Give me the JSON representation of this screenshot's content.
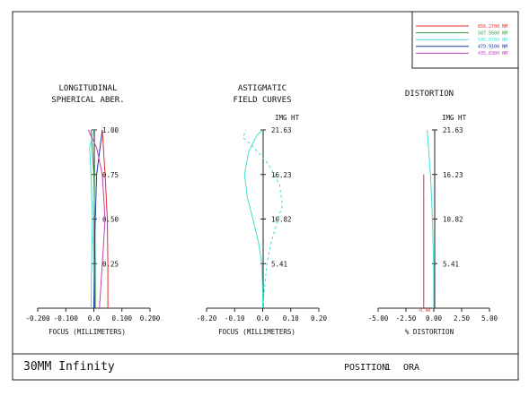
{
  "legend": {
    "items": [
      {
        "label": "656.2700 NM",
        "color": "#e03030"
      },
      {
        "label": "587.5600 NM",
        "color": "#2e9e3e"
      },
      {
        "label": "546.0700 NM",
        "color": "#40e0d0"
      },
      {
        "label": "479.9100 NM",
        "color": "#1a3aa0"
      },
      {
        "label": "435.8300 NM",
        "color": "#c040c0"
      }
    ]
  },
  "footer": {
    "lens_name": "30MM Infinity",
    "position_label": "POSITION",
    "position_value": "1",
    "position_suffix": "ORA"
  },
  "chart_data": [
    {
      "type": "line",
      "title": "LONGITUDINAL",
      "subtitle": "SPHERICAL ABER.",
      "xlabel": "FOCUS (MILLIMETERS)",
      "xlim": [
        -0.2,
        0.2
      ],
      "xticks": [
        "-0.200",
        "-0.100",
        "0.0",
        "0.100",
        "0.200"
      ],
      "ylim": [
        0,
        1
      ],
      "yticks": [
        "0.25",
        "0.50",
        "0.75",
        "1.00"
      ],
      "series": [
        {
          "color": "#e03030",
          "points": [
            [
              0.05,
              0
            ],
            [
              0.05,
              0.25
            ],
            [
              0.048,
              0.5
            ],
            [
              0.04,
              0.75
            ],
            [
              0.03,
              1.0
            ]
          ]
        },
        {
          "color": "#2e9e3e",
          "points": [
            [
              0.005,
              0
            ],
            [
              0.005,
              0.25
            ],
            [
              0.003,
              0.5
            ],
            [
              0.0,
              0.75
            ],
            [
              -0.01,
              1.0
            ]
          ]
        },
        {
          "color": "#40e0d0",
          "points": [
            [
              -0.01,
              0
            ],
            [
              -0.008,
              0.25
            ],
            [
              -0.005,
              0.5
            ],
            [
              -0.01,
              0.75
            ],
            [
              -0.015,
              0.9
            ],
            [
              0.0,
              1.0
            ]
          ]
        },
        {
          "color": "#1a3aa0",
          "points": [
            [
              0.0,
              0
            ],
            [
              0.002,
              0.25
            ],
            [
              0.005,
              0.5
            ],
            [
              0.01,
              0.75
            ],
            [
              0.03,
              1.0
            ]
          ]
        },
        {
          "color": "#c040c0",
          "points": [
            [
              0.02,
              0
            ],
            [
              0.03,
              0.25
            ],
            [
              0.04,
              0.5
            ],
            [
              0.03,
              0.75
            ],
            [
              0.01,
              0.9
            ],
            [
              -0.02,
              1.0
            ]
          ]
        }
      ]
    },
    {
      "type": "line",
      "title": "ASTIGMATIC",
      "subtitle": "FIELD CURVES",
      "xlabel": "FOCUS (MILLIMETERS)",
      "ylabel": "IMG HT",
      "xlim": [
        -0.2,
        0.2
      ],
      "xticks": [
        "-0.20",
        "-0.10",
        "0.0",
        "0.10",
        "0.20"
      ],
      "ylim": [
        0,
        21.63
      ],
      "yticks": [
        "5.41",
        "10.82",
        "16.23",
        "21.63"
      ],
      "series": [
        {
          "color": "#40e0d0",
          "style": "solid",
          "points": [
            [
              0,
              0
            ],
            [
              0.0,
              2
            ],
            [
              -0.003,
              5.41
            ],
            [
              -0.015,
              8
            ],
            [
              -0.035,
              10.82
            ],
            [
              -0.055,
              13.5
            ],
            [
              -0.065,
              16.23
            ],
            [
              -0.05,
              19
            ],
            [
              -0.02,
              21
            ],
            [
              0,
              21.63
            ]
          ]
        },
        {
          "color": "#40e0d0",
          "style": "dashed",
          "points": [
            [
              0,
              0
            ],
            [
              0.005,
              2
            ],
            [
              0.015,
              5.41
            ],
            [
              0.03,
              8
            ],
            [
              0.055,
              10.82
            ],
            [
              0.07,
              12.5
            ],
            [
              0.06,
              15
            ],
            [
              0.02,
              17.5
            ],
            [
              -0.04,
              19.8
            ],
            [
              -0.07,
              20.7
            ],
            [
              -0.06,
              21.63
            ]
          ]
        }
      ]
    },
    {
      "type": "line",
      "title": "DISTORTION",
      "xlabel": "% DISTORTION",
      "ylabel": "IMG HT",
      "xlim": [
        -5,
        5
      ],
      "xticks": [
        "-5.00",
        "-2.50",
        "0.00",
        "2.50",
        "5.00"
      ],
      "ylim": [
        0,
        21.63
      ],
      "yticks": [
        "5.41",
        "10.82",
        "16.23",
        "21.63"
      ],
      "edge_label": "-0.90",
      "series": [
        {
          "color": "#e03030",
          "points": [
            [
              -0.9,
              0
            ],
            [
              -0.9,
              16.23
            ]
          ]
        },
        {
          "color": "#40e0d0",
          "points": [
            [
              0,
              0
            ],
            [
              -0.02,
              5.41
            ],
            [
              -0.12,
              10.82
            ],
            [
              -0.3,
              16.23
            ],
            [
              -0.6,
              21.63
            ]
          ]
        }
      ]
    }
  ]
}
